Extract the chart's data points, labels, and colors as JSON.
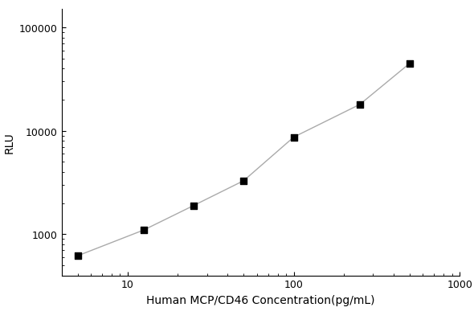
{
  "x": [
    5,
    12.5,
    25,
    50,
    100,
    250,
    500
  ],
  "y": [
    620,
    1100,
    1900,
    3300,
    8700,
    18000,
    45000
  ],
  "xlabel": "Human MCP/CD46 Concentration(pg/mL)",
  "ylabel": "RLU",
  "xlim": [
    4,
    1000
  ],
  "ylim": [
    400,
    150000
  ],
  "xticks": [
    10,
    100,
    1000
  ],
  "yticks": [
    1000,
    10000,
    100000
  ],
  "marker": "s",
  "marker_color": "black",
  "marker_size": 6,
  "line_color": "#aaaaaa",
  "line_width": 1.0,
  "background_color": "#ffffff",
  "xlabel_fontsize": 10,
  "ylabel_fontsize": 10,
  "tick_fontsize": 9
}
